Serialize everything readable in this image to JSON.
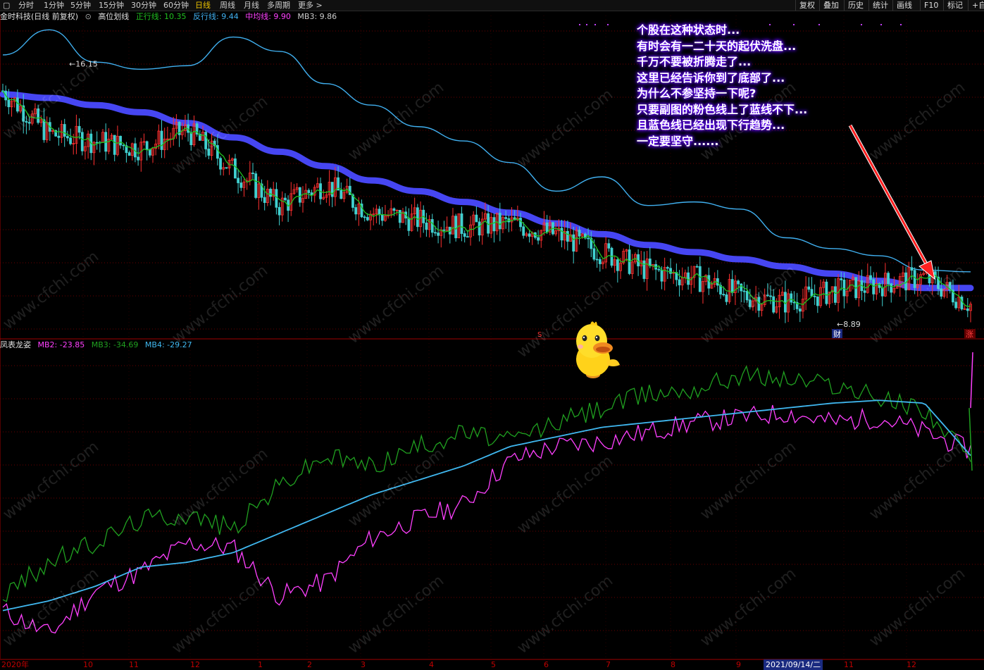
{
  "toolbar": {
    "tabs": [
      "分时",
      "1分钟",
      "5分钟",
      "15分钟",
      "30分钟",
      "60分钟",
      "日线",
      "周线",
      "月线",
      "多周期",
      "更多"
    ],
    "active": "日线",
    "right_buttons": [
      "复权",
      "叠加",
      "历史",
      "统计",
      "画线",
      "F10",
      "标记",
      "+自"
    ]
  },
  "main_header": {
    "stock": "金时科技(日线 前复权)",
    "indicator_name": "高位划线",
    "zx": "正行线: 10.35",
    "fx": "反行线: 9.44",
    "zj": "中均线: 9.90",
    "mb3": "MB3: 9.86"
  },
  "sub_header": {
    "indicator_name": "凤表龙姿",
    "mb2": "MB2: -23.85",
    "mb3": "MB3: -34.69",
    "mb4": "MB4: -29.27"
  },
  "annotations": {
    "high_price": "16.15",
    "low_price": "8.89",
    "marker_cai": "财",
    "marker_zhang": "涨",
    "marker_s": "S"
  },
  "note_lines": [
    "个股在这种状态时...",
    "有时会有一二十天的起伏洗盘...",
    "千万不要被折腾走了...",
    "这里已经告诉你到了底部了...",
    "为什么不参坚持一下呢?",
    "只要副图的粉色线上了蓝线不下...",
    "且蓝色线已经出现下行趋势...",
    "一定要坚守......"
  ],
  "watermark": "www.cfchi.com",
  "x_axis": {
    "labels": [
      "2020年",
      "10",
      "11",
      "12",
      "1",
      "2",
      "3",
      "4",
      "5",
      "6",
      "7",
      "8",
      "9",
      "2021/09/14/二",
      "11",
      "12"
    ]
  },
  "colors": {
    "up": "#ff3030",
    "down": "#40d0d0",
    "ma_green": "#20c020",
    "band_blue": "#4a4aff",
    "upper_line": "#40b0f0",
    "sub_pink": "#ff40ff",
    "sub_green": "#20a020",
    "sub_blue": "#40b8f0",
    "grid": "#6a0000"
  },
  "chart_data": [
    {
      "type": "candlestick",
      "title": "金时科技(日线 前复权)",
      "ylim": [
        8.5,
        17.5
      ],
      "series": [
        {
          "name": "中均线",
          "values": [
            15.3,
            15.2,
            15.0,
            14.8,
            14.5,
            14.1,
            13.7,
            13.3,
            12.9,
            12.6,
            12.3,
            12.0,
            11.7,
            11.4,
            11.1,
            10.9,
            10.7,
            10.5,
            10.3,
            10.1,
            9.9,
            9.9
          ]
        },
        {
          "name": "反行线",
          "values": [
            15.4,
            14.2,
            14.0,
            13.8,
            14.3,
            13.2,
            12.2,
            12.8,
            12.0,
            11.8,
            11.6,
            11.7,
            11.4,
            10.9,
            10.4,
            10.2,
            9.7,
            9.5,
            9.8,
            10.0,
            10.2,
            9.44
          ]
        },
        {
          "name": "正行线",
          "values": [
            16.4,
            17.1,
            16.2,
            16.0,
            16.1,
            16.9,
            16.5,
            15.6,
            15.0,
            14.4,
            14.0,
            13.4,
            12.6,
            13.0,
            12.2,
            12.3,
            12.1,
            11.3,
            11.0,
            10.8,
            10.4,
            10.35
          ]
        }
      ],
      "high_label": 16.15,
      "low_label": 8.89
    },
    {
      "type": "line",
      "title": "凤表龙姿",
      "series": [
        {
          "name": "MB2",
          "values": [
            -190,
            -215,
            -170,
            -150,
            -120,
            -125,
            -175,
            -160,
            -115,
            -95,
            -80,
            -35,
            -20,
            -15,
            -5,
            5,
            10,
            15,
            5,
            10,
            -5,
            -23.85
          ]
        },
        {
          "name": "MB3",
          "values": [
            -175,
            -140,
            -120,
            -95,
            -90,
            -105,
            -60,
            -30,
            -40,
            -20,
            -5,
            -15,
            5,
            20,
            35,
            40,
            55,
            50,
            45,
            30,
            20,
            -34.69
          ]
        },
        {
          "name": "MB4",
          "values": [
            -190,
            -180,
            -165,
            -145,
            -140,
            -130,
            -110,
            -90,
            -70,
            -55,
            -40,
            -20,
            -10,
            0,
            5,
            10,
            15,
            20,
            25,
            28,
            25,
            -29.27
          ]
        }
      ]
    }
  ]
}
